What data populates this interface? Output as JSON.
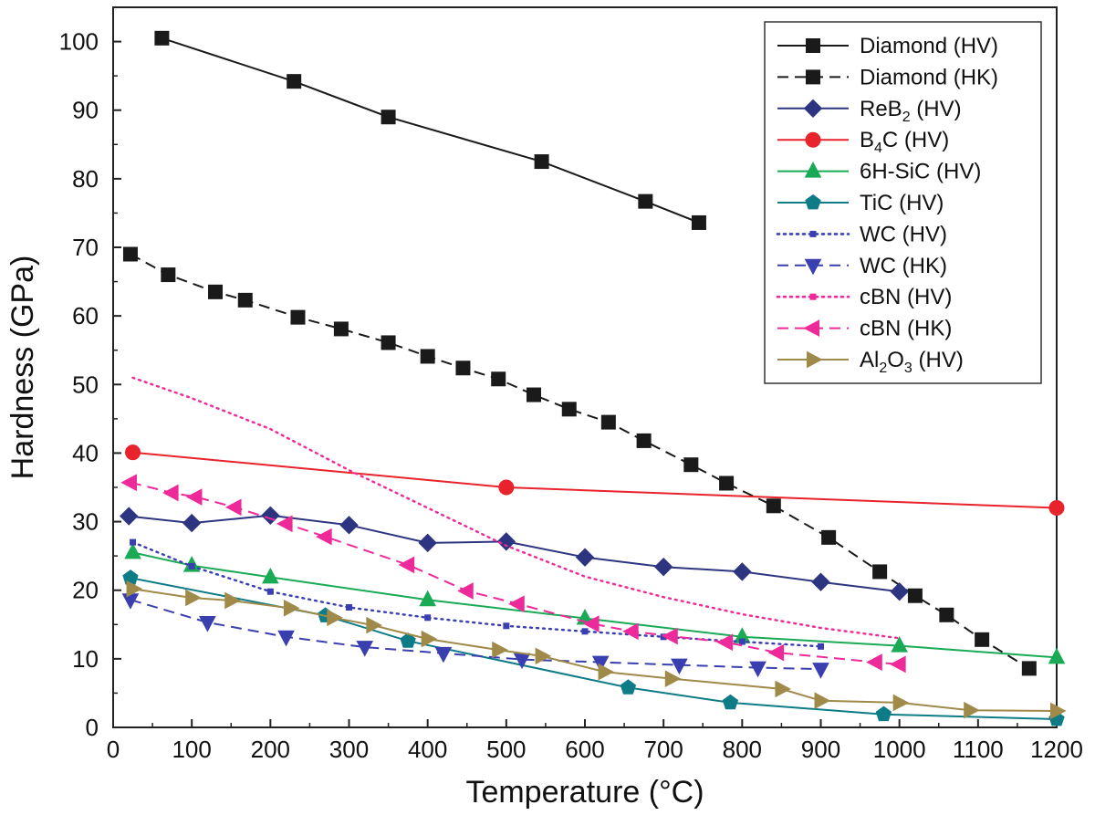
{
  "chart_data": {
    "type": "line",
    "xlabel": "Temperature (°C)",
    "ylabel": "Hardness (GPa)",
    "xlim": [
      0,
      1200
    ],
    "ylim": [
      0,
      105
    ],
    "xticks": [
      0,
      100,
      200,
      300,
      400,
      500,
      600,
      700,
      800,
      900,
      1000,
      1100,
      1200
    ],
    "yticks": [
      0,
      10,
      20,
      30,
      40,
      50,
      60,
      70,
      80,
      90,
      100
    ],
    "grid": false,
    "legend_position": "top-right",
    "series": [
      {
        "name": "Diamond (HV)",
        "legend": {
          "main": "Diamond (HV)"
        },
        "color": "#1a1a1a",
        "dash": "solid",
        "marker": "square",
        "x": [
          62,
          230,
          350,
          545,
          677,
          745
        ],
        "y": [
          100.5,
          94.2,
          89.0,
          82.5,
          76.7,
          73.6
        ]
      },
      {
        "name": "Diamond (HK)",
        "legend": {
          "main": "Diamond (HK)"
        },
        "color": "#1a1a1a",
        "dash": "dashed",
        "marker": "square",
        "x": [
          22,
          70,
          130,
          168,
          235,
          290,
          350,
          400,
          445,
          490,
          535,
          580,
          630,
          675,
          735,
          780,
          840,
          910,
          975,
          1020,
          1060,
          1105,
          1165
        ],
        "y": [
          69.0,
          66.0,
          63.5,
          62.3,
          59.8,
          58.1,
          56.1,
          54.1,
          52.4,
          50.8,
          48.5,
          46.4,
          44.5,
          41.8,
          38.3,
          35.6,
          32.3,
          27.7,
          22.7,
          19.2,
          16.4,
          12.8,
          8.6
        ]
      },
      {
        "name": "ReB2 (HV)",
        "legend": {
          "main": "ReB",
          "sub": "2",
          "rest": " (HV)"
        },
        "color": "#2e3580",
        "dash": "solid",
        "marker": "diamond",
        "x": [
          20,
          100,
          200,
          300,
          400,
          500,
          600,
          700,
          800,
          900,
          1000
        ],
        "y": [
          30.8,
          29.8,
          30.9,
          29.5,
          26.9,
          27.1,
          24.8,
          23.4,
          22.7,
          21.2,
          19.8
        ]
      },
      {
        "name": "B4C (HV)",
        "legend": {
          "main": "B",
          "sub": "4",
          "rest": "C (HV)"
        },
        "color": "#e8232b",
        "dash": "solid",
        "marker": "circle",
        "x": [
          25,
          500,
          1200
        ],
        "y": [
          40.1,
          35.0,
          32.0
        ]
      },
      {
        "name": "6H-SiC (HV)",
        "legend": {
          "main": "6H-SiC (HV)"
        },
        "color": "#1aaa55",
        "dash": "solid",
        "marker": "triangle-up",
        "x": [
          25,
          100,
          200,
          400,
          600,
          800,
          1000,
          1200
        ],
        "y": [
          25.5,
          23.6,
          21.9,
          18.6,
          15.9,
          13.2,
          11.9,
          10.2
        ]
      },
      {
        "name": "TiC (HV)",
        "legend": {
          "main": "TiC (HV)"
        },
        "color": "#0e7c86",
        "dash": "solid",
        "marker": "pentagon",
        "x": [
          22,
          270,
          375,
          655,
          785,
          980,
          1200
        ],
        "y": [
          21.8,
          16.3,
          12.6,
          5.8,
          3.6,
          1.9,
          1.2
        ]
      },
      {
        "name": "WC (HV)",
        "legend": {
          "main": "WC (HV)"
        },
        "color": "#3a3fb0",
        "dash": "dotted",
        "marker": "small-square",
        "x": [
          25,
          100,
          200,
          300,
          400,
          500,
          600,
          700,
          800,
          900
        ],
        "y": [
          27.0,
          23.5,
          19.8,
          17.5,
          16.0,
          14.8,
          14.0,
          13.2,
          12.5,
          11.8
        ]
      },
      {
        "name": "WC (HK)",
        "legend": {
          "main": "WC (HK)"
        },
        "color": "#3a3fb0",
        "dash": "dashed",
        "marker": "triangle-down",
        "x": [
          22,
          120,
          220,
          320,
          420,
          520,
          620,
          720,
          820,
          900
        ],
        "y": [
          18.6,
          15.3,
          13.2,
          11.7,
          10.8,
          9.9,
          9.5,
          9.1,
          8.7,
          8.5
        ]
      },
      {
        "name": "cBN (HV)",
        "legend": {
          "main": "cBN (HV)"
        },
        "color": "#ee2a9a",
        "dash": "dotted",
        "marker": "none",
        "x": [
          25,
          100,
          200,
          300,
          400,
          500,
          600,
          700,
          800,
          900,
          1000
        ],
        "y": [
          51.0,
          48.0,
          43.5,
          37.5,
          32.0,
          26.5,
          22.0,
          19.0,
          16.5,
          14.5,
          13.0
        ]
      },
      {
        "name": "cBN (HK)",
        "legend": {
          "main": "cBN (HK)"
        },
        "color": "#ee2a9a",
        "dash": "dashed",
        "marker": "triangle-left",
        "x": [
          22,
          75,
          105,
          155,
          220,
          270,
          375,
          450,
          515,
          610,
          660,
          710,
          780,
          845,
          970,
          1000
        ],
        "y": [
          35.7,
          34.2,
          33.6,
          32.1,
          29.7,
          27.8,
          23.7,
          19.9,
          18.0,
          15.1,
          14.0,
          13.3,
          12.4,
          10.9,
          9.5,
          9.2
        ]
      },
      {
        "name": "Al2O3 (HV)",
        "legend": {
          "main": "Al",
          "sub": "2",
          "mid": "O",
          "sub2": "3",
          "rest": " (HV)"
        },
        "color": "#a08a4a",
        "dash": "solid",
        "marker": "triangle-right",
        "x": [
          25,
          100,
          150,
          225,
          280,
          330,
          400,
          490,
          545,
          625,
          710,
          850,
          900,
          1000,
          1090,
          1200
        ],
        "y": [
          20.2,
          18.9,
          18.5,
          17.4,
          16.0,
          14.9,
          12.9,
          11.3,
          10.4,
          8.1,
          7.1,
          5.6,
          3.9,
          3.6,
          2.5,
          2.4
        ]
      }
    ]
  }
}
